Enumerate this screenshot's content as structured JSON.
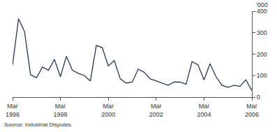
{
  "chart_data": {
    "type": "line",
    "y_label": "'000",
    "source": "Source: Industrial Disputes.",
    "categories": [
      "Mar\n1996",
      null,
      null,
      null,
      null,
      null,
      null,
      null,
      "Mar\n1998",
      null,
      null,
      null,
      null,
      null,
      null,
      null,
      "Mar\n2000",
      null,
      null,
      null,
      null,
      null,
      null,
      null,
      "Mar\n2002",
      null,
      null,
      null,
      null,
      null,
      null,
      null,
      "Mar\n2004",
      null,
      null,
      null,
      null,
      null,
      null,
      null,
      "Mar\n2006"
    ],
    "values": [
      150,
      365,
      305,
      105,
      90,
      140,
      125,
      175,
      95,
      190,
      125,
      110,
      100,
      75,
      240,
      230,
      145,
      170,
      85,
      65,
      70,
      130,
      115,
      85,
      75,
      65,
      55,
      70,
      70,
      60,
      165,
      150,
      80,
      155,
      95,
      55,
      45,
      55,
      50,
      80,
      30
    ],
    "color": "#23355e",
    "ylim": [
      0,
      400
    ],
    "yticks": [
      0,
      100,
      200,
      300,
      400
    ],
    "grid": false
  }
}
